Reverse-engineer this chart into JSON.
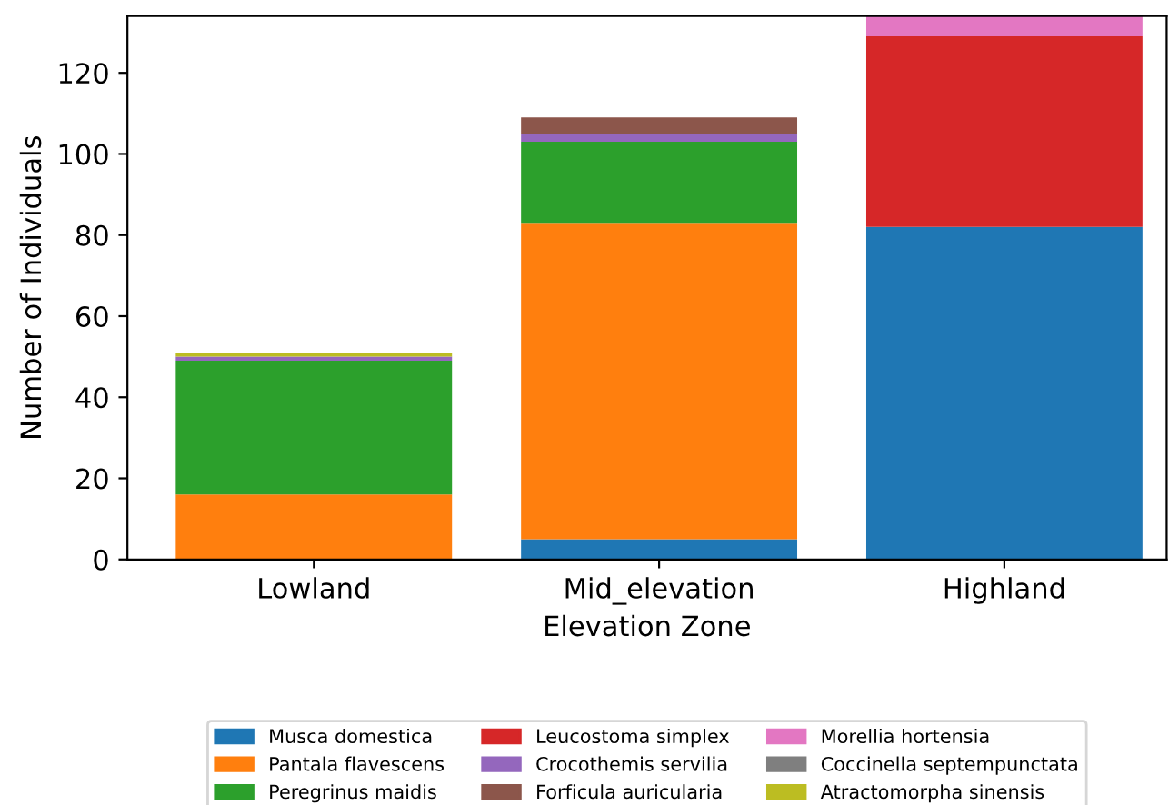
{
  "chart_data": {
    "type": "bar",
    "stacked": true,
    "xlabel": "Elevation Zone",
    "ylabel": "Number of Individuals",
    "categories": [
      "Lowland",
      "Mid_elevation",
      "Highland"
    ],
    "ylim": [
      0,
      134
    ],
    "yticks": [
      0,
      20,
      40,
      60,
      80,
      100,
      120
    ],
    "legend": "bottom",
    "grid": false,
    "series": [
      {
        "name": "Musca domestica",
        "color": "#1f77b4",
        "values": [
          0,
          5,
          82
        ]
      },
      {
        "name": "Pantala flavescens",
        "color": "#ff7f0e",
        "values": [
          16,
          78,
          0
        ]
      },
      {
        "name": "Peregrinus maidis",
        "color": "#2ca02c",
        "values": [
          33,
          20,
          0
        ]
      },
      {
        "name": "Leucostoma simplex",
        "color": "#d62728",
        "values": [
          0,
          0,
          47
        ]
      },
      {
        "name": "Crocothemis servilia",
        "color": "#9467bd",
        "values": [
          1,
          2,
          0
        ]
      },
      {
        "name": "Forficula auricularia",
        "color": "#8c564b",
        "values": [
          0,
          4,
          0
        ]
      },
      {
        "name": "Morellia hortensia",
        "color": "#e377c2",
        "values": [
          0,
          0,
          5
        ]
      },
      {
        "name": "Coccinella septempunctata",
        "color": "#7f7f7f",
        "values": [
          0,
          0,
          0
        ]
      },
      {
        "name": "Atractomorpha sinensis",
        "color": "#bcbd22",
        "values": [
          1,
          0,
          0
        ]
      }
    ]
  }
}
